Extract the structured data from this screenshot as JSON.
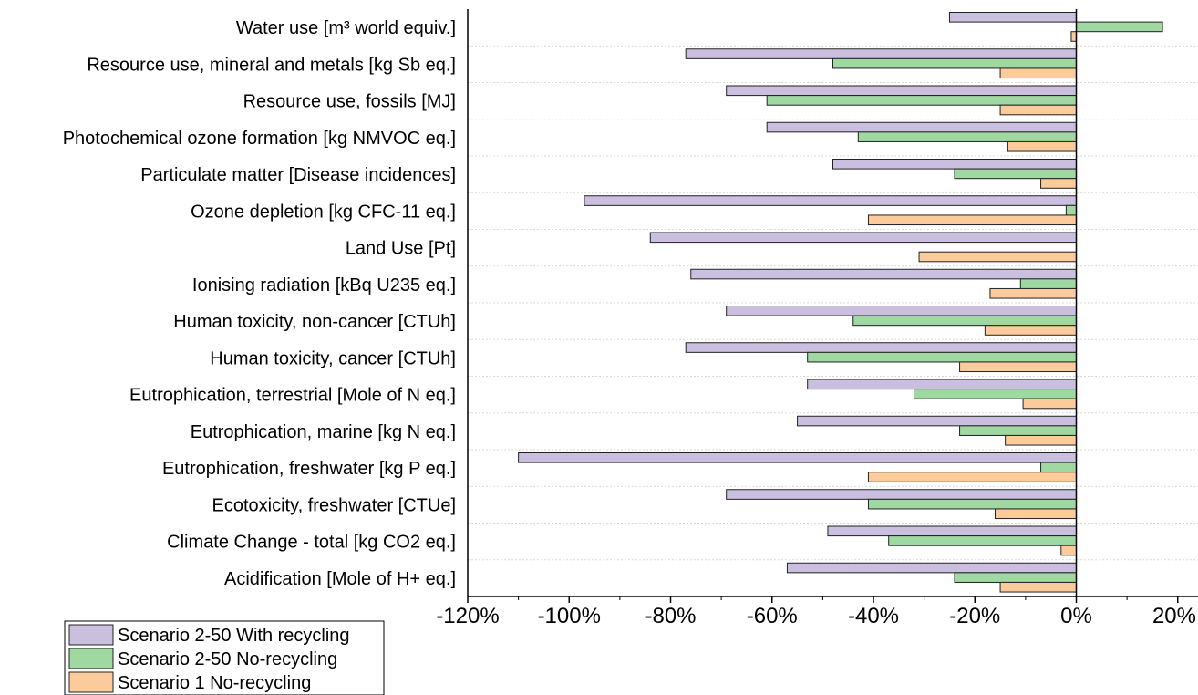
{
  "chart_data": {
    "type": "bar",
    "orientation": "horizontal",
    "categories": [
      "Water use [m³ world equiv.]",
      "Resource use, mineral and metals [kg Sb eq.]",
      "Resource use, fossils [MJ]",
      "Photochemical ozone formation [kg NMVOC eq.]",
      "Particulate matter [Disease incidences]",
      "Ozone depletion [kg CFC-11 eq.]",
      "Land Use [Pt]",
      "Ionising radiation [kBq U235 eq.]",
      "Human toxicity, non-cancer [CTUh]",
      "Human toxicity, cancer [CTUh]",
      "Eutrophication, terrestrial [Mole of N eq.]",
      "Eutrophication, marine [kg N eq.]",
      "Eutrophication, freshwater [kg P eq.]",
      "Ecotoxicity, freshwater [CTUe]",
      "Climate Change - total [kg CO2 eq.]",
      "Acidification [Mole of H+ eq.]"
    ],
    "series": [
      {
        "name": "Scenario 2-50 With recycling",
        "color": "#cbbfe0",
        "values": [
          -25,
          -77,
          -69,
          -61,
          -48,
          -97,
          -84,
          -76,
          -69,
          -77,
          -53,
          -55,
          -110,
          -69,
          -49,
          -57
        ]
      },
      {
        "name": "Scenario 2-50 No-recycling",
        "color": "#9fd8a0",
        "values": [
          17,
          -48,
          -61,
          -43,
          -24,
          -2,
          0,
          -11,
          -44,
          -53,
          -32,
          -23,
          -7,
          -41,
          -37,
          -24
        ]
      },
      {
        "name": "Scenario 1 No-recycling",
        "color": "#fccb9c",
        "values": [
          -1,
          -15,
          -15,
          -13.5,
          -7,
          -41,
          -31,
          -17,
          -18,
          -23,
          -10.5,
          -14,
          -41,
          -16,
          -3,
          -15
        ]
      }
    ],
    "x_ticks": [
      "-120%",
      "-100%",
      "-80%",
      "-60%",
      "-40%",
      "-20%",
      "0%",
      "20%"
    ],
    "xlim": [
      -120,
      24
    ],
    "unit": "%",
    "grid": true,
    "legend_position": "bottom-left"
  }
}
